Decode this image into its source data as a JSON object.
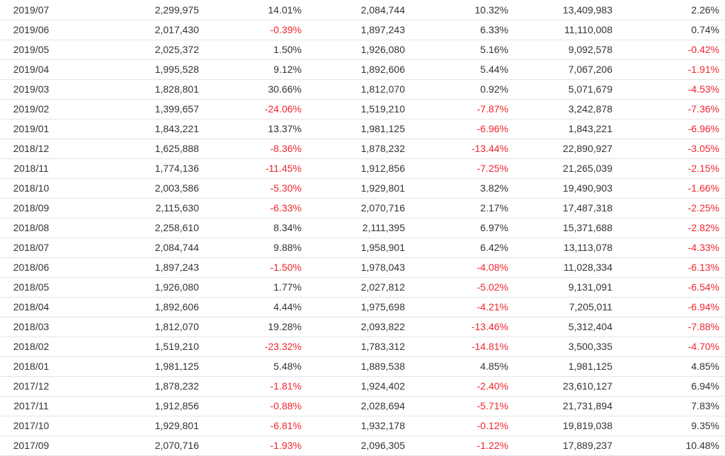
{
  "colors": {
    "negative": "#f0262e",
    "text": "#333333",
    "row_border": "#e4e4e4"
  },
  "rows": [
    [
      "2019/07",
      "2,299,975",
      "14.01%",
      "2,084,744",
      "10.32%",
      "13,409,983",
      "2.26%"
    ],
    [
      "2019/06",
      "2,017,430",
      "-0.39%",
      "1,897,243",
      "6.33%",
      "11,110,008",
      "0.74%"
    ],
    [
      "2019/05",
      "2,025,372",
      "1.50%",
      "1,926,080",
      "5.16%",
      "9,092,578",
      "-0.42%"
    ],
    [
      "2019/04",
      "1,995,528",
      "9.12%",
      "1,892,606",
      "5.44%",
      "7,067,206",
      "-1.91%"
    ],
    [
      "2019/03",
      "1,828,801",
      "30.66%",
      "1,812,070",
      "0.92%",
      "5,071,679",
      "-4.53%"
    ],
    [
      "2019/02",
      "1,399,657",
      "-24.06%",
      "1,519,210",
      "-7.87%",
      "3,242,878",
      "-7.36%"
    ],
    [
      "2019/01",
      "1,843,221",
      "13.37%",
      "1,981,125",
      "-6.96%",
      "1,843,221",
      "-6.96%"
    ],
    [
      "2018/12",
      "1,625,888",
      "-8.36%",
      "1,878,232",
      "-13.44%",
      "22,890,927",
      "-3.05%"
    ],
    [
      "2018/11",
      "1,774,136",
      "-11.45%",
      "1,912,856",
      "-7.25%",
      "21,265,039",
      "-2.15%"
    ],
    [
      "2018/10",
      "2,003,586",
      "-5.30%",
      "1,929,801",
      "3.82%",
      "19,490,903",
      "-1.66%"
    ],
    [
      "2018/09",
      "2,115,630",
      "-6.33%",
      "2,070,716",
      "2.17%",
      "17,487,318",
      "-2.25%"
    ],
    [
      "2018/08",
      "2,258,610",
      "8.34%",
      "2,111,395",
      "6.97%",
      "15,371,688",
      "-2.82%"
    ],
    [
      "2018/07",
      "2,084,744",
      "9.88%",
      "1,958,901",
      "6.42%",
      "13,113,078",
      "-4.33%"
    ],
    [
      "2018/06",
      "1,897,243",
      "-1.50%",
      "1,978,043",
      "-4.08%",
      "11,028,334",
      "-6.13%"
    ],
    [
      "2018/05",
      "1,926,080",
      "1.77%",
      "2,027,812",
      "-5.02%",
      "9,131,091",
      "-6.54%"
    ],
    [
      "2018/04",
      "1,892,606",
      "4.44%",
      "1,975,698",
      "-4.21%",
      "7,205,011",
      "-6.94%"
    ],
    [
      "2018/03",
      "1,812,070",
      "19.28%",
      "2,093,822",
      "-13.46%",
      "5,312,404",
      "-7.88%"
    ],
    [
      "2018/02",
      "1,519,210",
      "-23.32%",
      "1,783,312",
      "-14.81%",
      "3,500,335",
      "-4.70%"
    ],
    [
      "2018/01",
      "1,981,125",
      "5.48%",
      "1,889,538",
      "4.85%",
      "1,981,125",
      "4.85%"
    ],
    [
      "2017/12",
      "1,878,232",
      "-1.81%",
      "1,924,402",
      "-2.40%",
      "23,610,127",
      "6.94%"
    ],
    [
      "2017/11",
      "1,912,856",
      "-0.88%",
      "2,028,694",
      "-5.71%",
      "21,731,894",
      "7.83%"
    ],
    [
      "2017/10",
      "1,929,801",
      "-6.81%",
      "1,932,178",
      "-0.12%",
      "19,819,038",
      "9.35%"
    ],
    [
      "2017/09",
      "2,070,716",
      "-1.93%",
      "2,096,305",
      "-1.22%",
      "17,889,237",
      "10.48%"
    ]
  ]
}
